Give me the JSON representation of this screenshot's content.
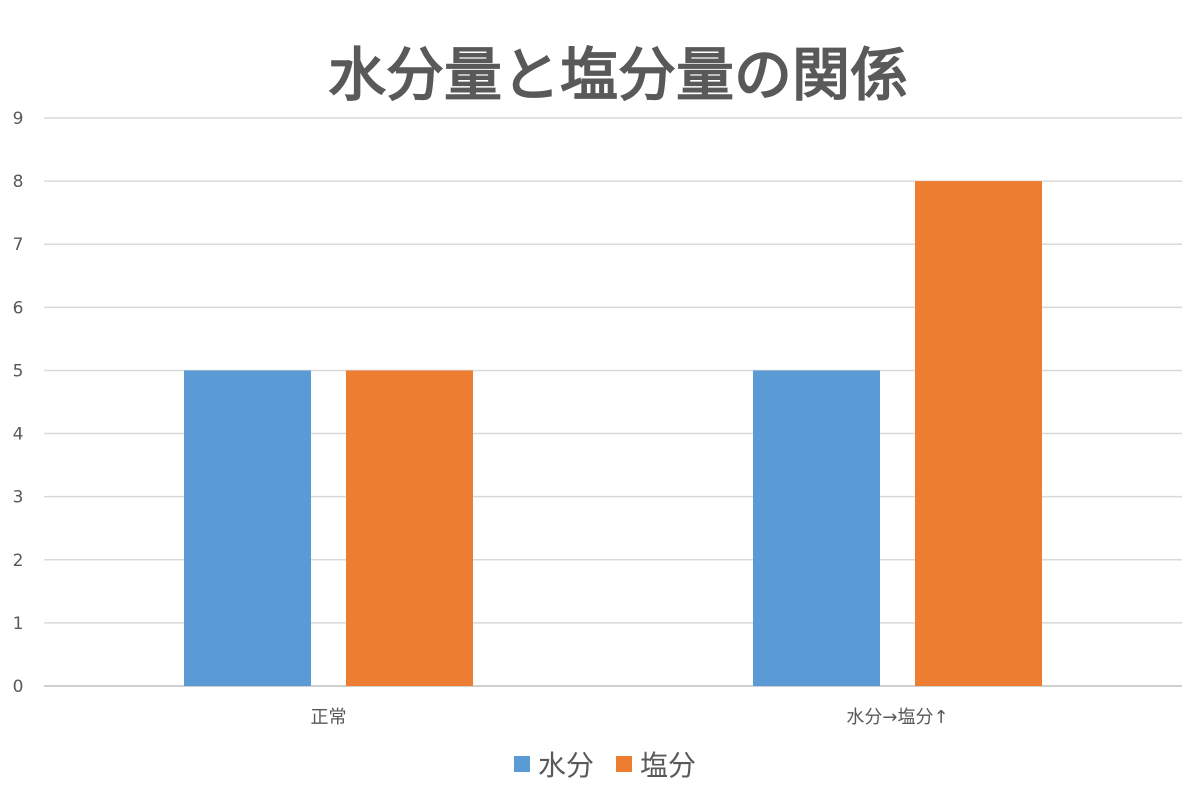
{
  "chart_data": {
    "type": "bar",
    "title": "水分量と塩分量の関係",
    "categories": [
      "正常",
      "水分→塩分↑"
    ],
    "series": [
      {
        "name": "水分",
        "values": [
          5,
          5
        ],
        "color": "#5B9BD5"
      },
      {
        "name": "塩分",
        "values": [
          5,
          8
        ],
        "color": "#ED7D31"
      }
    ],
    "ylim": [
      0,
      9
    ],
    "yticks": [
      0,
      1,
      2,
      3,
      4,
      5,
      6,
      7,
      8,
      9
    ],
    "grid": true,
    "legend_position": "bottom",
    "xlabel": "",
    "ylabel": ""
  }
}
